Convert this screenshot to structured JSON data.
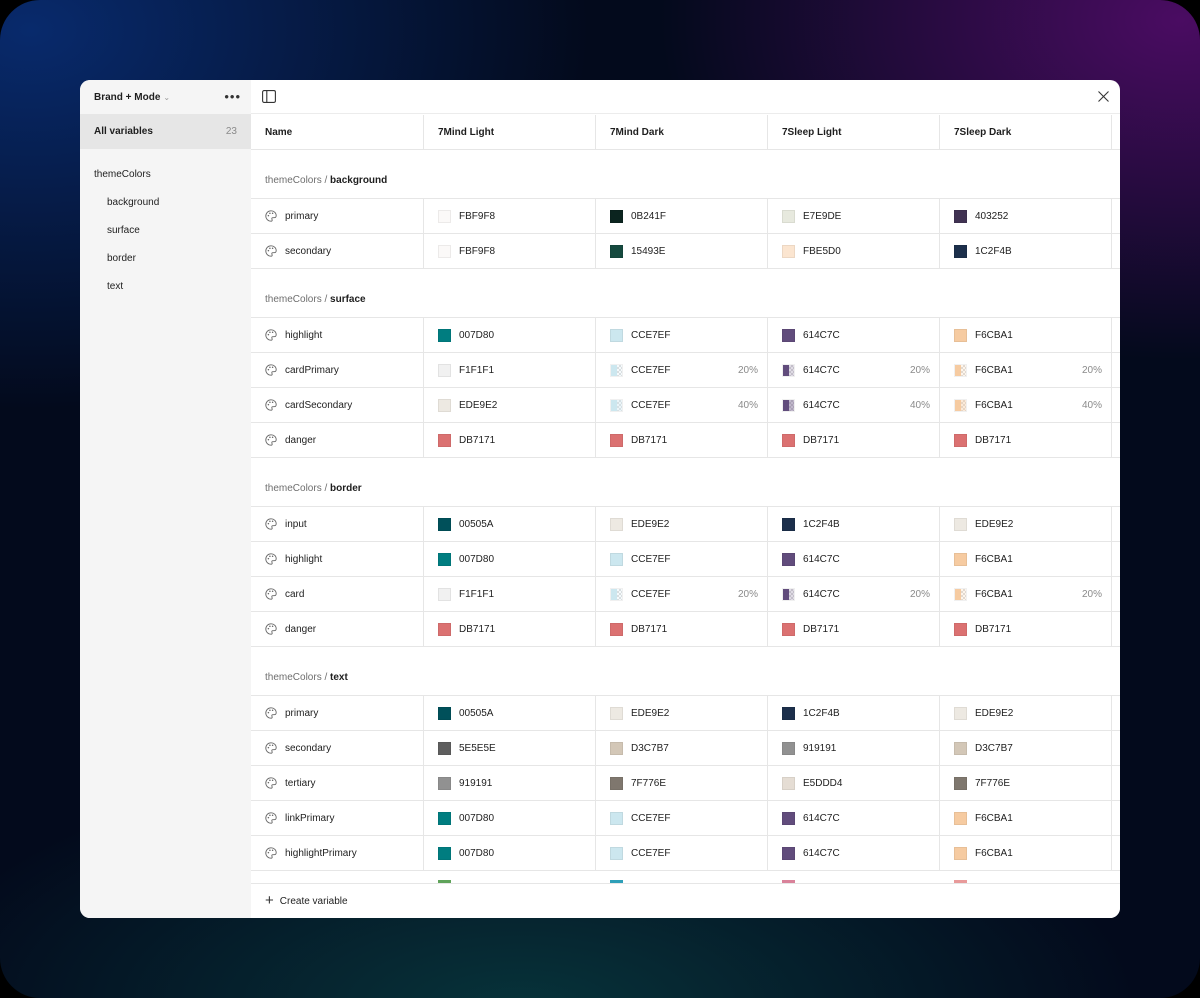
{
  "sidebar": {
    "collection": "Brand + Mode",
    "all_label": "All variables",
    "all_count": "23",
    "group": "themeColors",
    "subgroups": [
      "background",
      "surface",
      "border",
      "text"
    ]
  },
  "columns": [
    "Name",
    "7Mind Light",
    "7Mind Dark",
    "7Sleep Light",
    "7Sleep Dark"
  ],
  "groups": [
    {
      "prefix": "themeColors / ",
      "name": "background",
      "rows": [
        {
          "name": "primary",
          "cells": [
            {
              "hex": "FBF9F8",
              "color": "#FBF9F8"
            },
            {
              "hex": "0B241F",
              "color": "#0B241F"
            },
            {
              "hex": "E7E9DE",
              "color": "#E7E9DE"
            },
            {
              "hex": "403252",
              "color": "#403252"
            }
          ]
        },
        {
          "name": "secondary",
          "cells": [
            {
              "hex": "FBF9F8",
              "color": "#FBF9F8"
            },
            {
              "hex": "15493E",
              "color": "#15493E"
            },
            {
              "hex": "FBE5D0",
              "color": "#FBE5D0"
            },
            {
              "hex": "1C2F4B",
              "color": "#1C2F4B"
            }
          ]
        }
      ]
    },
    {
      "prefix": "themeColors / ",
      "name": "surface",
      "rows": [
        {
          "name": "highlight",
          "cells": [
            {
              "hex": "007D80",
              "color": "#007D80"
            },
            {
              "hex": "CCE7EF",
              "color": "#CCE7EF"
            },
            {
              "hex": "614C7C",
              "color": "#614C7C"
            },
            {
              "hex": "F6CBA1",
              "color": "#F6CBA1"
            }
          ]
        },
        {
          "name": "cardPrimary",
          "cells": [
            {
              "hex": "F1F1F1",
              "color": "#F1F1F1"
            },
            {
              "hex": "CCE7EF",
              "color": "#CCE7EF",
              "opacity": "20%"
            },
            {
              "hex": "614C7C",
              "color": "#614C7C",
              "opacity": "20%"
            },
            {
              "hex": "F6CBA1",
              "color": "#F6CBA1",
              "opacity": "20%"
            }
          ]
        },
        {
          "name": "cardSecondary",
          "cells": [
            {
              "hex": "EDE9E2",
              "color": "#EDE9E2"
            },
            {
              "hex": "CCE7EF",
              "color": "#CCE7EF",
              "opacity": "40%"
            },
            {
              "hex": "614C7C",
              "color": "#614C7C",
              "opacity": "40%"
            },
            {
              "hex": "F6CBA1",
              "color": "#F6CBA1",
              "opacity": "40%"
            }
          ]
        },
        {
          "name": "danger",
          "cells": [
            {
              "hex": "DB7171",
              "color": "#DB7171"
            },
            {
              "hex": "DB7171",
              "color": "#DB7171"
            },
            {
              "hex": "DB7171",
              "color": "#DB7171"
            },
            {
              "hex": "DB7171",
              "color": "#DB7171"
            }
          ]
        }
      ]
    },
    {
      "prefix": "themeColors / ",
      "name": "border",
      "rows": [
        {
          "name": "input",
          "cells": [
            {
              "hex": "00505A",
              "color": "#00505A"
            },
            {
              "hex": "EDE9E2",
              "color": "#EDE9E2"
            },
            {
              "hex": "1C2F4B",
              "color": "#1C2F4B"
            },
            {
              "hex": "EDE9E2",
              "color": "#EDE9E2"
            }
          ]
        },
        {
          "name": "highlight",
          "cells": [
            {
              "hex": "007D80",
              "color": "#007D80"
            },
            {
              "hex": "CCE7EF",
              "color": "#CCE7EF"
            },
            {
              "hex": "614C7C",
              "color": "#614C7C"
            },
            {
              "hex": "F6CBA1",
              "color": "#F6CBA1"
            }
          ]
        },
        {
          "name": "card",
          "cells": [
            {
              "hex": "F1F1F1",
              "color": "#F1F1F1"
            },
            {
              "hex": "CCE7EF",
              "color": "#CCE7EF",
              "opacity": "20%"
            },
            {
              "hex": "614C7C",
              "color": "#614C7C",
              "opacity": "20%"
            },
            {
              "hex": "F6CBA1",
              "color": "#F6CBA1",
              "opacity": "20%"
            }
          ]
        },
        {
          "name": "danger",
          "cells": [
            {
              "hex": "DB7171",
              "color": "#DB7171"
            },
            {
              "hex": "DB7171",
              "color": "#DB7171"
            },
            {
              "hex": "DB7171",
              "color": "#DB7171"
            },
            {
              "hex": "DB7171",
              "color": "#DB7171"
            }
          ]
        }
      ]
    },
    {
      "prefix": "themeColors / ",
      "name": "text",
      "rows": [
        {
          "name": "primary",
          "cells": [
            {
              "hex": "00505A",
              "color": "#00505A"
            },
            {
              "hex": "EDE9E2",
              "color": "#EDE9E2"
            },
            {
              "hex": "1C2F4B",
              "color": "#1C2F4B"
            },
            {
              "hex": "EDE9E2",
              "color": "#EDE9E2"
            }
          ]
        },
        {
          "name": "secondary",
          "cells": [
            {
              "hex": "5E5E5E",
              "color": "#5E5E5E"
            },
            {
              "hex": "D3C7B7",
              "color": "#D3C7B7"
            },
            {
              "hex": "919191",
              "color": "#919191"
            },
            {
              "hex": "D3C7B7",
              "color": "#D3C7B7"
            }
          ]
        },
        {
          "name": "tertiary",
          "cells": [
            {
              "hex": "919191",
              "color": "#919191"
            },
            {
              "hex": "7F776E",
              "color": "#7F776E"
            },
            {
              "hex": "E5DDD4",
              "color": "#E5DDD4"
            },
            {
              "hex": "7F776E",
              "color": "#7F776E"
            }
          ]
        },
        {
          "name": "linkPrimary",
          "cells": [
            {
              "hex": "007D80",
              "color": "#007D80"
            },
            {
              "hex": "CCE7EF",
              "color": "#CCE7EF"
            },
            {
              "hex": "614C7C",
              "color": "#614C7C"
            },
            {
              "hex": "F6CBA1",
              "color": "#F6CBA1"
            }
          ]
        },
        {
          "name": "highlightPrimary",
          "cells": [
            {
              "hex": "007D80",
              "color": "#007D80"
            },
            {
              "hex": "CCE7EF",
              "color": "#CCE7EF"
            },
            {
              "hex": "614C7C",
              "color": "#614C7C"
            },
            {
              "hex": "F6CBA1",
              "color": "#F6CBA1"
            }
          ]
        }
      ]
    }
  ],
  "peek_colors": [
    "#5FA35A",
    "#2E9FB8",
    "#D9829A",
    "#E89A9A"
  ],
  "footer": {
    "create_label": "Create variable"
  }
}
